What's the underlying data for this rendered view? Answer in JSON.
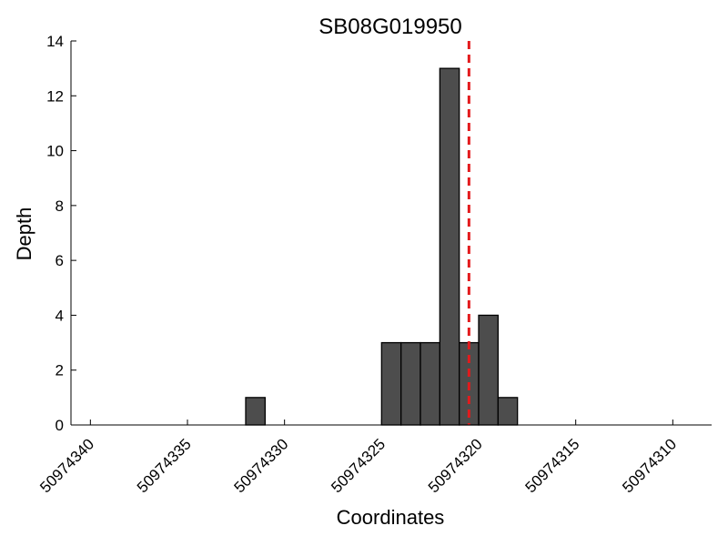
{
  "chart_data": {
    "type": "bar",
    "title": "SB08G019950",
    "xlabel": "Coordinates",
    "ylabel": "Depth",
    "x_axis_reversed": true,
    "xlim": [
      50974341,
      50974308
    ],
    "ylim": [
      0,
      14
    ],
    "x_ticks": [
      50974340,
      50974335,
      50974330,
      50974325,
      50974320,
      50974315,
      50974310
    ],
    "x_tick_labels": [
      "50974340",
      "50974335",
      "50974330",
      "50974325",
      "50974320",
      "50974315",
      "50974310"
    ],
    "y_ticks": [
      0,
      2,
      4,
      6,
      8,
      10,
      12,
      14
    ],
    "y_tick_labels": [
      "0",
      "2",
      "4",
      "6",
      "8",
      "10",
      "12",
      "14"
    ],
    "bar_width": 1,
    "bars": [
      {
        "x": 50974331,
        "value": 1
      },
      {
        "x": 50974324,
        "value": 3
      },
      {
        "x": 50974323,
        "value": 3
      },
      {
        "x": 50974322,
        "value": 3
      },
      {
        "x": 50974321,
        "value": 13
      },
      {
        "x": 50974320,
        "value": 3
      },
      {
        "x": 50974319,
        "value": 4
      },
      {
        "x": 50974318,
        "value": 1
      }
    ],
    "marker_line": {
      "x": 50974320.5,
      "style": "dashed",
      "color": "#e31a1c"
    },
    "bar_color": "#4d4d4d",
    "bar_edge_color": "#000000",
    "grid": false,
    "legend": "none"
  }
}
